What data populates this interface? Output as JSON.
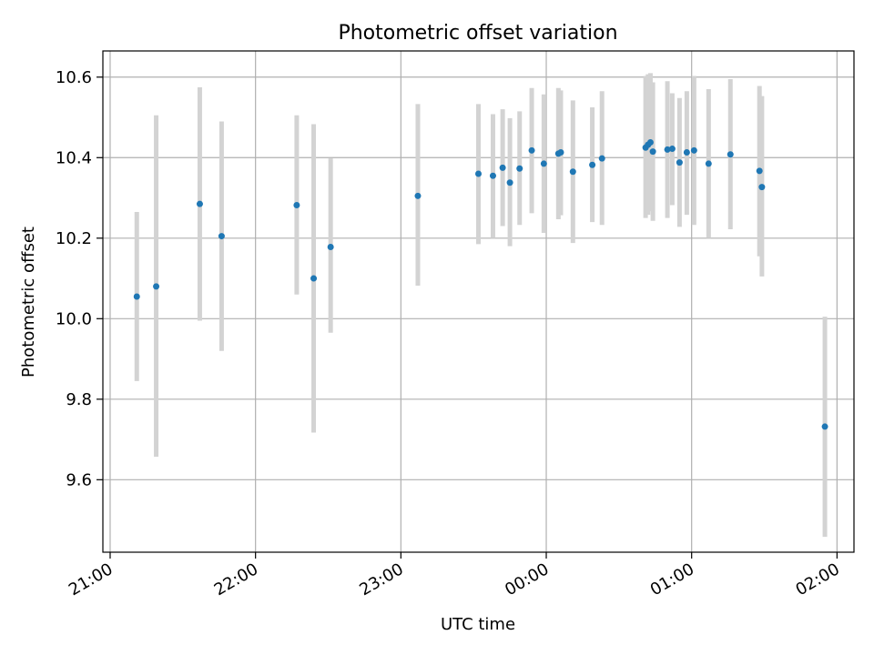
{
  "chart_data": {
    "type": "scatter",
    "title": "Photometric offset variation",
    "xlabel": "UTC time",
    "ylabel": "Photometric offset",
    "grid": true,
    "legend": "none",
    "marker_color": "#1f77b4",
    "errorbar_color": "#d3d3d3",
    "xlim": [
      "20:57",
      "02:07"
    ],
    "ylim": [
      9.42,
      10.665
    ],
    "x_ticks": [
      "21:00",
      "22:00",
      "23:00",
      "00:00",
      "01:00",
      "02:00"
    ],
    "y_ticks": [
      "9.6",
      "9.8",
      "10.0",
      "10.2",
      "10.4",
      "10.6"
    ],
    "points": [
      {
        "x": "21:11",
        "y": 10.055,
        "ylow": 9.845,
        "yhigh": 10.265
      },
      {
        "x": "21:19",
        "y": 10.08,
        "ylow": 9.657,
        "yhigh": 10.505
      },
      {
        "x": "21:37",
        "y": 10.285,
        "ylow": 9.995,
        "yhigh": 10.575
      },
      {
        "x": "21:46",
        "y": 10.205,
        "ylow": 9.92,
        "yhigh": 10.49
      },
      {
        "x": "22:17",
        "y": 10.282,
        "ylow": 10.06,
        "yhigh": 10.505
      },
      {
        "x": "22:24",
        "y": 10.1,
        "ylow": 9.717,
        "yhigh": 10.483
      },
      {
        "x": "22:31",
        "y": 10.178,
        "ylow": 9.965,
        "yhigh": 10.398
      },
      {
        "x": "23:07",
        "y": 10.305,
        "ylow": 10.082,
        "yhigh": 10.533
      },
      {
        "x": "23:32",
        "y": 10.36,
        "ylow": 10.185,
        "yhigh": 10.533
      },
      {
        "x": "23:38",
        "y": 10.355,
        "ylow": 10.2,
        "yhigh": 10.508
      },
      {
        "x": "23:42",
        "y": 10.375,
        "ylow": 10.23,
        "yhigh": 10.52
      },
      {
        "x": "23:45",
        "y": 10.338,
        "ylow": 10.18,
        "yhigh": 10.498
      },
      {
        "x": "23:49",
        "y": 10.373,
        "ylow": 10.233,
        "yhigh": 10.515
      },
      {
        "x": "23:54",
        "y": 10.418,
        "ylow": 10.262,
        "yhigh": 10.573
      },
      {
        "x": "23:59",
        "y": 10.385,
        "ylow": 10.213,
        "yhigh": 10.557
      },
      {
        "x": "00:05",
        "y": 10.41,
        "ylow": 10.247,
        "yhigh": 10.573
      },
      {
        "x": "00:06",
        "y": 10.413,
        "ylow": 10.257,
        "yhigh": 10.567
      },
      {
        "x": "00:11",
        "y": 10.365,
        "ylow": 10.188,
        "yhigh": 10.542
      },
      {
        "x": "00:19",
        "y": 10.382,
        "ylow": 10.24,
        "yhigh": 10.525
      },
      {
        "x": "00:23",
        "y": 10.398,
        "ylow": 10.233,
        "yhigh": 10.565
      },
      {
        "x": "00:41",
        "y": 10.425,
        "ylow": 10.25,
        "yhigh": 10.603
      },
      {
        "x": "00:42",
        "y": 10.432,
        "ylow": 10.258,
        "yhigh": 10.607
      },
      {
        "x": "00:43",
        "y": 10.438,
        "ylow": 10.267,
        "yhigh": 10.61
      },
      {
        "x": "00:44",
        "y": 10.415,
        "ylow": 10.243,
        "yhigh": 10.587
      },
      {
        "x": "00:50",
        "y": 10.42,
        "ylow": 10.25,
        "yhigh": 10.59
      },
      {
        "x": "00:52",
        "y": 10.422,
        "ylow": 10.282,
        "yhigh": 10.56
      },
      {
        "x": "00:55",
        "y": 10.388,
        "ylow": 10.228,
        "yhigh": 10.548
      },
      {
        "x": "00:58",
        "y": 10.413,
        "ylow": 10.258,
        "yhigh": 10.565
      },
      {
        "x": "01:01",
        "y": 10.418,
        "ylow": 10.233,
        "yhigh": 10.603
      },
      {
        "x": "01:07",
        "y": 10.385,
        "ylow": 10.2,
        "yhigh": 10.57
      },
      {
        "x": "01:16",
        "y": 10.408,
        "ylow": 10.222,
        "yhigh": 10.595
      },
      {
        "x": "01:28",
        "y": 10.367,
        "ylow": 10.155,
        "yhigh": 10.578
      },
      {
        "x": "01:29",
        "y": 10.327,
        "ylow": 10.105,
        "yhigh": 10.553
      },
      {
        "x": "01:55",
        "y": 9.732,
        "ylow": 9.458,
        "yhigh": 10.005
      }
    ]
  }
}
